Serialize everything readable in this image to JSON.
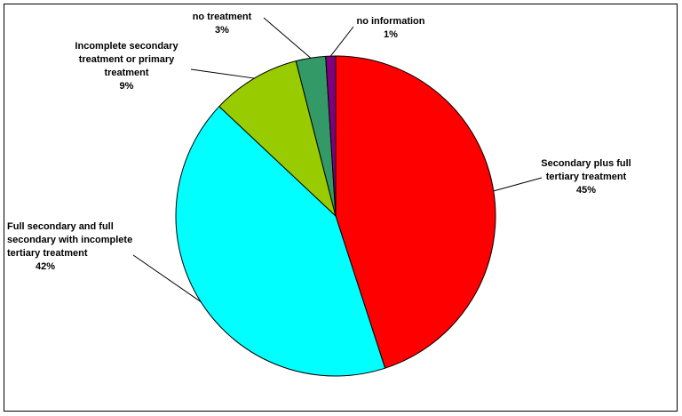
{
  "chart_data": {
    "type": "pie",
    "categories": [
      "Secondary plus full tertiary treatment",
      "Full secondary and full secondary with incomplete tertiary treatment",
      "Incomplete secondary treatment or primary treatment",
      "no treatment",
      "no information"
    ],
    "values": [
      45,
      42,
      9,
      3,
      1
    ],
    "value_labels": [
      "45%",
      "42%",
      "9%",
      "3%",
      "1%"
    ],
    "colors": [
      "#ff0000",
      "#00ffff",
      "#99cc00",
      "#339966",
      "#800080"
    ]
  }
}
